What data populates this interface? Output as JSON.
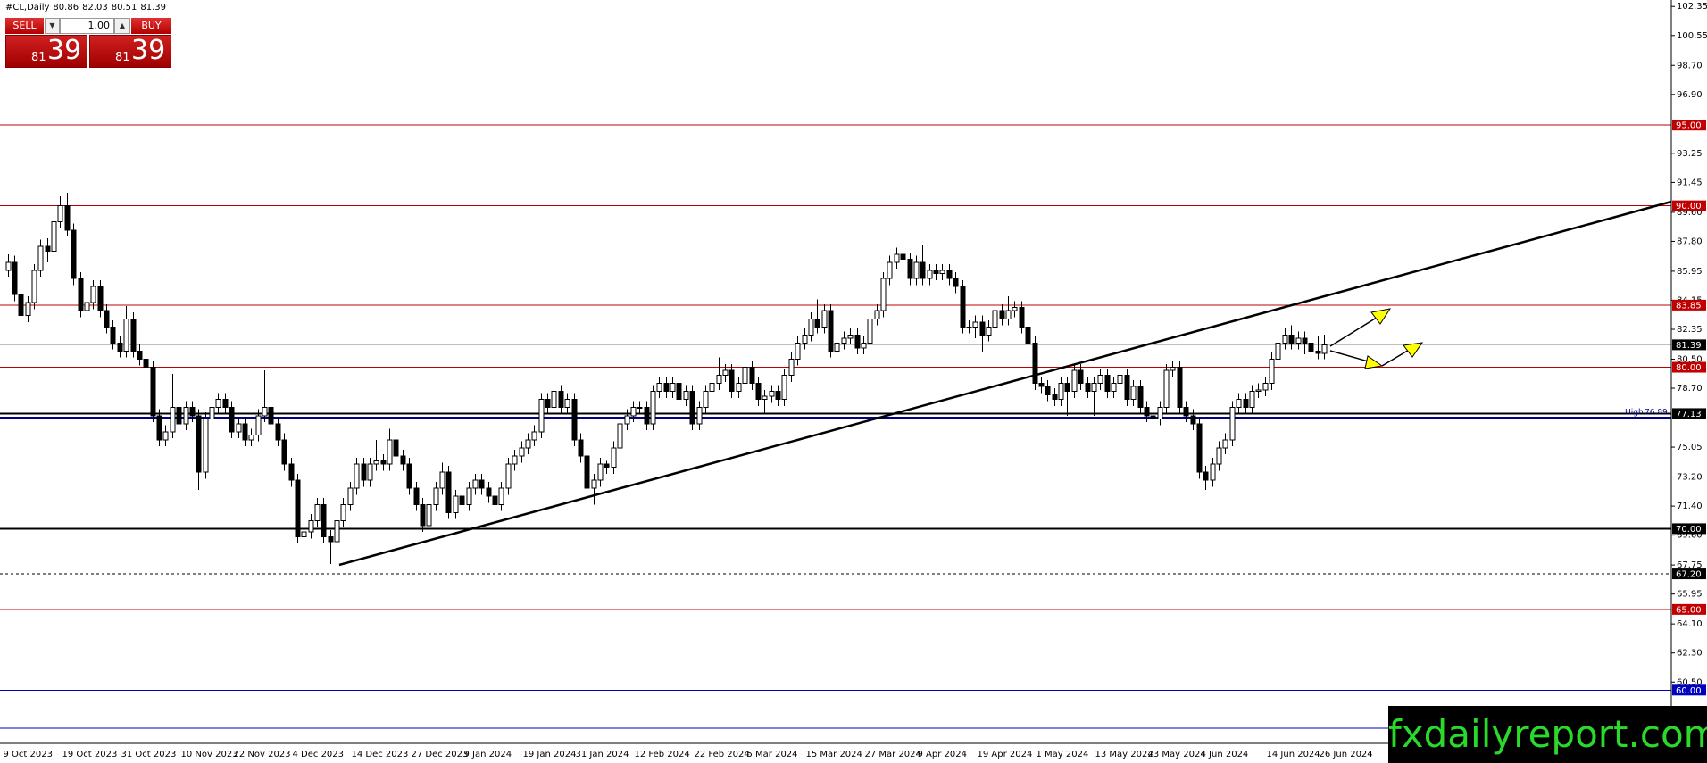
{
  "header": {
    "symbol": "#CL,Daily",
    "values": [
      80.86,
      82.03,
      80.51,
      81.39
    ]
  },
  "panel": {
    "sell": "SELL",
    "buy": "BUY",
    "lot": "1.00",
    "sell_quote": [
      "81",
      "39"
    ],
    "buy_quote": [
      "81",
      "39"
    ]
  },
  "watermark": "fxdailyreport.com",
  "chart_data": {
    "type": "candlestick",
    "up_color": "#ffffff",
    "down_color": "#000000",
    "wick_color": "#000000",
    "ylim": [
      56.7,
      102.75
    ],
    "yticks": [
      102.35,
      100.55,
      {
        "value": 98.7,
        "label": "98.70"
      },
      {
        "value": 96.9,
        "label": "96.90"
      },
      93.25,
      91.45,
      {
        "value": 89.6,
        "label": "89.60"
      },
      {
        "value": 87.8,
        "label": "87.80"
      },
      85.95,
      84.15,
      82.35,
      {
        "value": 80.5,
        "label": "80.50"
      },
      {
        "value": 78.7,
        "label": "78.70"
      },
      75.05,
      {
        "value": 73.2,
        "label": "73.20"
      },
      {
        "value": 71.4,
        "label": "71.40"
      },
      {
        "value": 69.6,
        "label": "69.60"
      },
      67.75,
      65.95,
      {
        "value": 64.1,
        "label": "64.10"
      },
      {
        "value": 62.3,
        "label": "62.30"
      },
      {
        "value": 60.5,
        "label": "60.50"
      }
    ],
    "levels": [
      {
        "price": {
          "value": 95,
          "label": "95.00"
        },
        "color": "#c00000",
        "style": "solid",
        "boxed": true
      },
      {
        "price": {
          "value": 90,
          "label": "90.00"
        },
        "color": "#c00000",
        "style": "solid",
        "boxed": true
      },
      {
        "price": 83.85,
        "color": "#c00000",
        "style": "solid",
        "boxed": true
      },
      {
        "price": 81.39,
        "color": "#c0c0c0",
        "box_color": "#000000",
        "style": "solid",
        "boxed": true
      },
      {
        "price": {
          "value": 80,
          "label": "80.00"
        },
        "color": "#c00000",
        "style": "solid",
        "boxed": true
      },
      {
        "price": 77.13,
        "color": "#000000",
        "style": "thick",
        "boxed": true
      },
      {
        "price": 76.89,
        "color": "#000080",
        "style": "thick",
        "text": "High"
      },
      {
        "price": {
          "value": 70,
          "label": "70.00"
        },
        "color": "#000000",
        "style": "thick",
        "boxed": true
      },
      {
        "price": {
          "value": 67.2,
          "label": "67.20"
        },
        "color": "#000000",
        "style": "dashed",
        "boxed": true
      },
      {
        "price": {
          "value": 65,
          "label": "65.00"
        },
        "color": "#c00000",
        "style": "solid",
        "boxed": true
      },
      {
        "price": {
          "value": 60,
          "label": "60.00"
        },
        "color": "#0000c0",
        "style": "solid",
        "boxed": true
      },
      {
        "price": 57.64,
        "color": "#0000c0",
        "style": "solid"
      }
    ],
    "categories": [
      "9 Oct 2023",
      null,
      null,
      null,
      null,
      null,
      null,
      null,
      null,
      "19 Oct 2023",
      null,
      null,
      null,
      null,
      null,
      null,
      null,
      null,
      "31 Oct 2023",
      null,
      null,
      null,
      null,
      null,
      null,
      null,
      null,
      "10 Nov 2023",
      null,
      null,
      null,
      null,
      null,
      null,
      null,
      "22 Nov 2023",
      null,
      null,
      null,
      null,
      null,
      null,
      null,
      null,
      "4 Dec 2023",
      null,
      null,
      null,
      null,
      null,
      null,
      null,
      null,
      "14 Dec 2023",
      null,
      null,
      null,
      null,
      null,
      null,
      null,
      null,
      "27 Dec 2023",
      null,
      null,
      null,
      null,
      null,
      null,
      null,
      "9 Jan 2024",
      null,
      null,
      null,
      null,
      null,
      null,
      null,
      null,
      "19 Jan 2024",
      null,
      null,
      null,
      null,
      null,
      null,
      null,
      "31 Jan 2024",
      null,
      null,
      null,
      null,
      null,
      null,
      null,
      null,
      "12 Feb 2024",
      null,
      null,
      null,
      null,
      null,
      null,
      null,
      null,
      "22 Feb 2024",
      null,
      null,
      null,
      null,
      null,
      null,
      null,
      "5 Mar 2024",
      null,
      null,
      null,
      null,
      null,
      null,
      null,
      null,
      "15 Mar 2024",
      null,
      null,
      null,
      null,
      null,
      null,
      null,
      null,
      "27 Mar 2024",
      null,
      null,
      null,
      null,
      null,
      null,
      null,
      "9 Apr 2024",
      null,
      null,
      null,
      null,
      null,
      null,
      null,
      null,
      "19 Apr 2024",
      null,
      null,
      null,
      null,
      null,
      null,
      null,
      null,
      "1 May 2024",
      null,
      null,
      null,
      null,
      null,
      null,
      null,
      null,
      "13 May 2024",
      null,
      null,
      null,
      null,
      null,
      null,
      null,
      "23 May 2024",
      null,
      null,
      null,
      null,
      null,
      null,
      null,
      "4 Jun 2024",
      null,
      null,
      null,
      null,
      null,
      null,
      null,
      null,
      null,
      "14 Jun 2024",
      null,
      null,
      null,
      null,
      null,
      null,
      null,
      "26 Jun 2024"
    ],
    "open": [
      86.0,
      86.5,
      84.5,
      83.2,
      84,
      86,
      87.5,
      87.2,
      89,
      90,
      88.5,
      85.5,
      83.5,
      84,
      85,
      83.5,
      82.5,
      81.5,
      81,
      83,
      81,
      80.5,
      80,
      77,
      75.5,
      76,
      77.5,
      76.5,
      77.5,
      77,
      73.5,
      76.8,
      77.5,
      78,
      77.5,
      76,
      76.5,
      75.5,
      75.8,
      77,
      77.5,
      76.5,
      75.5,
      74,
      73,
      69.5,
      69.8,
      70.5,
      71.5,
      69.5,
      69.2,
      70.5,
      71.5,
      72.5,
      74,
      73,
      74,
      74.2,
      74,
      75.5,
      74.5,
      74,
      72.5,
      71.5,
      70.2,
      71.5,
      72.5,
      73.5,
      71,
      72,
      71.5,
      72.5,
      73,
      72.5,
      72,
      71.5,
      72.5,
      74,
      74.5,
      75,
      75.5,
      76,
      78,
      77.5,
      78.5,
      77.5,
      78,
      75.5,
      74.5,
      72.5,
      73,
      74,
      73.8,
      75,
      76.5,
      77,
      77.5,
      77.5,
      76.5,
      78.5,
      79,
      78.5,
      79,
      78,
      78.5,
      76.5,
      77.5,
      78.5,
      79,
      79.5,
      79.8,
      78.5,
      79,
      80,
      79,
      78,
      78.2,
      78.5,
      78,
      79.5,
      80.5,
      81.5,
      82,
      83,
      82.5,
      83.5,
      81,
      81.5,
      81.8,
      82,
      81.2,
      81.5,
      83,
      83.5,
      85.5,
      86.5,
      87,
      86.7,
      85.5,
      86.5,
      85.5,
      86,
      85.8,
      86,
      85.5,
      85,
      82.5,
      82.5,
      82.8,
      82,
      82.5,
      83.5,
      83,
      83.5,
      83.7,
      82.5,
      81.5,
      79,
      78.8,
      78.3,
      78,
      79,
      78.5,
      79.8,
      79,
      78.5,
      79,
      79.5,
      78.5,
      79,
      79.5,
      78,
      78.8,
      77.5,
      77,
      76.8,
      77.5,
      79.8,
      80,
      77.5,
      77,
      76.5,
      73.5,
      73,
      74,
      75,
      75.5,
      77.5,
      78,
      77.5,
      78.5,
      78.6,
      79,
      80.5,
      81.5,
      82,
      81.5,
      81.8,
      81.5,
      81,
      80.86
    ],
    "high": [
      87.0,
      86.9,
      84.9,
      84.4,
      86.4,
      87.9,
      88.0,
      89.4,
      90.6,
      90.8,
      88.9,
      85.9,
      84.9,
      85.4,
      85.4,
      83.9,
      82.9,
      81.9,
      83.8,
      83.4,
      81.4,
      80.9,
      80.4,
      77.4,
      76.4,
      79.6,
      77.9,
      77.9,
      77.9,
      77.4,
      77.2,
      77.9,
      78.4,
      78.4,
      77.9,
      76.9,
      76.9,
      76.2,
      77.4,
      79.8,
      77.9,
      76.9,
      75.9,
      74.4,
      73.4,
      70.2,
      70.9,
      71.9,
      71.9,
      69.9,
      70.9,
      71.9,
      72.9,
      74.4,
      74.4,
      74.4,
      75.5,
      74.6,
      76.2,
      75.9,
      74.9,
      74.4,
      72.9,
      71.9,
      71.9,
      72.9,
      74.1,
      73.9,
      72.4,
      72.4,
      72.9,
      73.4,
      73.4,
      72.9,
      72.4,
      72.9,
      74.4,
      74.9,
      75.4,
      75.9,
      76.4,
      78.4,
      78.4,
      79.2,
      78.9,
      78.4,
      78.4,
      75.9,
      74.9,
      73.4,
      74.4,
      74.2,
      75.4,
      76.9,
      77.4,
      77.9,
      77.9,
      77.9,
      78.9,
      79.4,
      79.4,
      79.4,
      79.4,
      78.9,
      78.9,
      77.9,
      78.9,
      79.4,
      80.6,
      80.2,
      80.2,
      79.4,
      80.4,
      80.4,
      79.4,
      78.6,
      78.9,
      78.9,
      79.9,
      80.9,
      81.9,
      82.4,
      83.4,
      84.2,
      83.9,
      83.9,
      81.9,
      82.2,
      82.4,
      82.4,
      81.9,
      83.4,
      83.9,
      85.9,
      86.9,
      87.4,
      87.6,
      87.1,
      86.9,
      87.6,
      86.4,
      86.4,
      86.4,
      86.4,
      85.9,
      85.4,
      82.9,
      83.2,
      83.2,
      82.9,
      83.9,
      83.9,
      84.4,
      84.1,
      84.1,
      82.9,
      81.9,
      79.4,
      79.2,
      78.7,
      79.4,
      79.4,
      80.2,
      80.2,
      79.4,
      79.4,
      79.9,
      79.9,
      79.4,
      80.5,
      79.9,
      79.2,
      79.2,
      77.9,
      77.2,
      77.9,
      80.2,
      80.4,
      80.4,
      77.9,
      77.4,
      76.9,
      73.9,
      74.4,
      75.4,
      75.9,
      77.9,
      78.4,
      78.4,
      78.9,
      79.0,
      79.4,
      80.9,
      81.9,
      82.4,
      82.6,
      82.2,
      82.2,
      81.9,
      81.9,
      82.03
    ],
    "low": [
      85.6,
      84.1,
      82.6,
      82.8,
      83.6,
      85.6,
      86.5,
      86.8,
      88.6,
      88.1,
      85.1,
      83.1,
      82.6,
      83.6,
      83.1,
      82.1,
      81.1,
      80.6,
      80.6,
      80.6,
      80.1,
      79.6,
      76.6,
      75.1,
      75.1,
      75.6,
      76.1,
      76.1,
      76.6,
      72.4,
      73.1,
      76.4,
      77.1,
      77.1,
      75.6,
      75.6,
      75.1,
      75.1,
      75.4,
      76.6,
      76.1,
      75.1,
      73.6,
      72.6,
      69.1,
      68.9,
      69.4,
      70.1,
      69.1,
      67.8,
      68.8,
      70.1,
      71.1,
      72.1,
      72.6,
      72.6,
      73.6,
      73.6,
      73.6,
      74.1,
      73.6,
      72.1,
      71.1,
      69.8,
      69.8,
      71.1,
      72.1,
      70.6,
      70.6,
      71.1,
      71.1,
      72.1,
      72.1,
      71.6,
      71.1,
      71.1,
      72.1,
      73.6,
      74.1,
      74.6,
      75.1,
      75.6,
      77.1,
      77.1,
      77.1,
      77.1,
      75.1,
      74.1,
      72.1,
      71.5,
      72.6,
      73.4,
      73.4,
      74.6,
      76.1,
      76.6,
      77.1,
      76.1,
      76.1,
      78.1,
      78.1,
      78.1,
      77.6,
      77.6,
      76.1,
      76.1,
      77.1,
      78.1,
      78.6,
      79.1,
      78.1,
      78.1,
      78.6,
      78.6,
      77.6,
      77.1,
      77.8,
      77.6,
      77.6,
      79.1,
      80.1,
      81.1,
      81.6,
      82.1,
      82.1,
      80.6,
      80.6,
      81.1,
      81.4,
      80.8,
      80.8,
      81.1,
      82.6,
      83.1,
      85.1,
      86.1,
      86.3,
      85.1,
      85.1,
      85.1,
      85.1,
      85.4,
      85.4,
      85.1,
      84.6,
      82.1,
      82.1,
      81.8,
      80.9,
      81.6,
      82.1,
      82.6,
      82.6,
      83.1,
      82.1,
      81.1,
      78.6,
      78.4,
      77.9,
      77.6,
      77.6,
      77.0,
      78.1,
      78.6,
      78.1,
      77.0,
      78.6,
      78.1,
      78.1,
      78.6,
      77.6,
      77.6,
      77.1,
      76.6,
      76.0,
      76.4,
      77.1,
      79.4,
      77.1,
      76.6,
      76.1,
      73.1,
      72.4,
      72.6,
      73.6,
      74.6,
      75.1,
      77.1,
      77.1,
      77.1,
      78.1,
      78.2,
      78.6,
      80.1,
      81.1,
      81.1,
      81.1,
      80.8,
      80.6,
      80.5,
      80.51
    ],
    "close": [
      86.5,
      84.5,
      83.2,
      84,
      86,
      87.5,
      87.2,
      89,
      90,
      88.5,
      85.5,
      83.5,
      84,
      85,
      83.5,
      82.5,
      81.5,
      81,
      83,
      81,
      80.5,
      80,
      77,
      75.5,
      76,
      77.5,
      76.5,
      77.5,
      77,
      73.5,
      76.8,
      77.5,
      78,
      77.5,
      76,
      76.5,
      75.5,
      75.8,
      77,
      77.5,
      76.5,
      75.5,
      74,
      73,
      69.5,
      69.8,
      70.5,
      71.5,
      69.5,
      69.2,
      70.5,
      71.5,
      72.5,
      74,
      73,
      74,
      74.2,
      74,
      75.5,
      74.5,
      74,
      72.5,
      71.5,
      70.2,
      71.5,
      72.5,
      73.5,
      71,
      72,
      71.5,
      72.5,
      73,
      72.5,
      72,
      71.5,
      72.5,
      74,
      74.5,
      75,
      75.5,
      76,
      78,
      77.5,
      78.5,
      77.5,
      78,
      75.5,
      74.5,
      72.5,
      73,
      74,
      73.8,
      75,
      76.5,
      77,
      77.5,
      77.5,
      76.5,
      78.5,
      79,
      78.5,
      79,
      78,
      78.5,
      76.5,
      77.5,
      78.5,
      79,
      79.5,
      79.8,
      78.5,
      79,
      80,
      79,
      78,
      78.2,
      78.5,
      78,
      79.5,
      80.5,
      81.5,
      82,
      83,
      82.5,
      83.5,
      81,
      81.5,
      81.8,
      82,
      81.2,
      81.5,
      83,
      83.5,
      85.5,
      86.5,
      87,
      86.7,
      85.5,
      86.5,
      85.5,
      86,
      85.8,
      86,
      85.5,
      85,
      82.5,
      82.5,
      82.8,
      82,
      82.5,
      83.5,
      83,
      83.5,
      83.7,
      82.5,
      81.5,
      79,
      78.8,
      78.3,
      78,
      79,
      78.5,
      79.8,
      79,
      78.5,
      79,
      79.5,
      78.5,
      79,
      79.5,
      78,
      78.8,
      77.5,
      77,
      76.8,
      77.5,
      79.8,
      80,
      77.5,
      77,
      76.5,
      73.5,
      73,
      74,
      75,
      75.5,
      77.5,
      78,
      77.5,
      78.5,
      78.6,
      79,
      80.5,
      81.5,
      82,
      81.5,
      81.8,
      81.5,
      81,
      80.86,
      81.39
    ]
  }
}
